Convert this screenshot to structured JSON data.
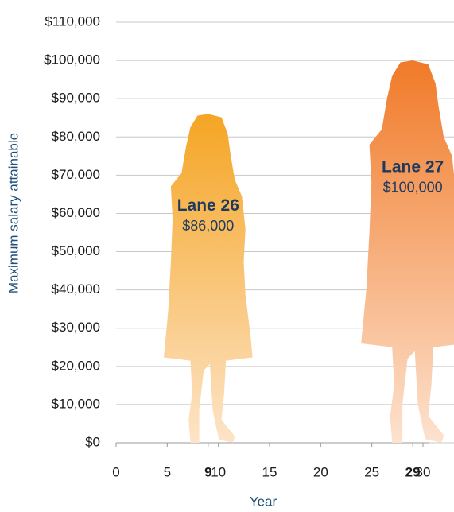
{
  "chart_data": {
    "type": "pictograph",
    "x_label": "Year",
    "y_label": "Maximum salary attainable",
    "x": [
      9,
      29
    ],
    "labels": [
      "Lane 26",
      "Lane 27"
    ],
    "values": [
      86000,
      100000
    ],
    "value_labels": [
      "$86,000",
      "$100,000"
    ],
    "colors": [
      {
        "top": "#f5a524",
        "bottom": "#fde4c8"
      },
      {
        "top": "#f07a28",
        "bottom": "#fde2cf"
      }
    ],
    "xlim": [
      0,
      30
    ],
    "xticks": [
      0,
      5,
      9,
      10,
      15,
      20,
      25,
      29,
      30
    ],
    "ylim": [
      0,
      110000
    ],
    "yticks": [
      {
        "value": 0,
        "label": "$0"
      },
      {
        "value": 10000,
        "label": "$10,000"
      },
      {
        "value": 20000,
        "label": "$20,000"
      },
      {
        "value": 30000,
        "label": "$30,000"
      },
      {
        "value": 40000,
        "label": "$40,000"
      },
      {
        "value": 50000,
        "label": "$50,000"
      },
      {
        "value": 60000,
        "label": "$60,000"
      },
      {
        "value": 70000,
        "label": "$70,000"
      },
      {
        "value": 80000,
        "label": "$80,000"
      },
      {
        "value": 90000,
        "label": "$90,000"
      },
      {
        "value": 100000,
        "label": "$100,000"
      },
      {
        "value": 110000,
        "label": "$110,000"
      }
    ],
    "grid": true
  }
}
